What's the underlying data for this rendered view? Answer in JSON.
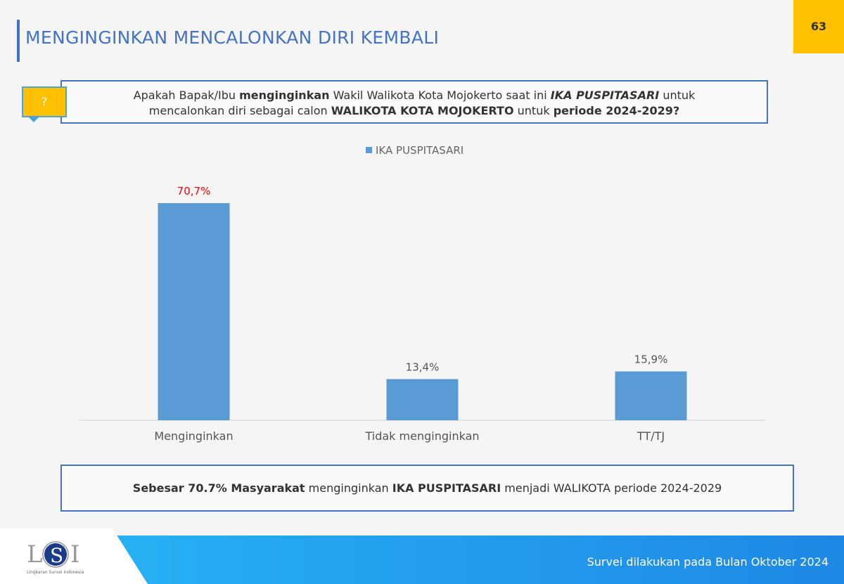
{
  "header": {
    "title": "MENGINGINKAN MENCALONKAN DIRI KEMBALI",
    "page_number": "63"
  },
  "question": {
    "icon": "question-mark",
    "mark": "?",
    "parts": [
      {
        "t": "Apakah Bapak/Ibu ",
        "s": ""
      },
      {
        "t": "menginginkan",
        "s": "b"
      },
      {
        "t": " Wakil Walikota Kota Mojokerto saat ini ",
        "s": ""
      },
      {
        "t": "IKA PUSPITASARI",
        "s": "bi"
      },
      {
        "t": " untuk",
        "s": ""
      },
      {
        "t": "\n",
        "s": "br"
      },
      {
        "t": "mencalonkan diri sebagai calon ",
        "s": ""
      },
      {
        "t": "WALIKOTA KOTA MOJOKERTO",
        "s": "b"
      },
      {
        "t": " untuk ",
        "s": ""
      },
      {
        "t": "periode 2024-2029?",
        "s": "b"
      }
    ]
  },
  "chart_data": {
    "type": "bar",
    "categories": [
      "Menginginkan",
      "Tidak menginginkan",
      "TT/TJ"
    ],
    "series": [
      {
        "name": "IKA PUSPITASARI",
        "values": [
          70.7,
          13.4,
          15.9
        ],
        "labels": [
          "70,7%",
          "13,4%",
          "15,9%"
        ]
      }
    ],
    "color": "#5b9bd5",
    "highlight_label_color": "#ff0000",
    "ylim": [
      0,
      75
    ],
    "grid": false,
    "legend": "top"
  },
  "summary": {
    "parts": [
      {
        "t": "Sebesar 70.7% Masyarakat",
        "s": "b"
      },
      {
        "t": " menginginkan ",
        "s": ""
      },
      {
        "t": "IKA PUSPITASARI",
        "s": "b"
      },
      {
        "t": " menjadi WALIKOTA periode 2024-2029",
        "s": ""
      }
    ]
  },
  "footer": {
    "text": "Survei dilakukan pada Bulan Oktober 2024",
    "logo": "LSI",
    "logo_sub": "Lingkaran Survei Indonesia"
  }
}
